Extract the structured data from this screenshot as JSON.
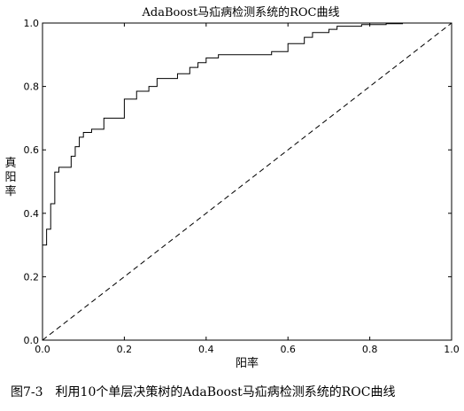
{
  "chart_data": {
    "type": "line",
    "title": "AdaBoost马疝病检测系统的ROC曲线",
    "xlabel": "阳率",
    "ylabel": "真阳率",
    "xlim": [
      0.0,
      1.0
    ],
    "ylim": [
      0.0,
      1.0
    ],
    "x_ticks": [
      "0.0",
      "0.2",
      "0.4",
      "0.6",
      "0.8",
      "1.0"
    ],
    "y_ticks": [
      "0.0",
      "0.2",
      "0.4",
      "0.6",
      "0.8",
      "1.0"
    ],
    "grid": false,
    "series": [
      {
        "style": "solid",
        "x": [
          0.0,
          0.0,
          0.01,
          0.01,
          0.02,
          0.02,
          0.03,
          0.03,
          0.04,
          0.04,
          0.07,
          0.07,
          0.08,
          0.08,
          0.09,
          0.09,
          0.1,
          0.1,
          0.12,
          0.12,
          0.15,
          0.15,
          0.2,
          0.2,
          0.23,
          0.23,
          0.26,
          0.26,
          0.28,
          0.28,
          0.33,
          0.33,
          0.36,
          0.36,
          0.38,
          0.38,
          0.4,
          0.4,
          0.43,
          0.43,
          0.56,
          0.56,
          0.6,
          0.6,
          0.64,
          0.64,
          0.66,
          0.66,
          0.7,
          0.7,
          0.72,
          0.72,
          0.78,
          0.78,
          0.84,
          0.84,
          0.88,
          0.88,
          1.0
        ],
        "y": [
          0.0,
          0.3,
          0.3,
          0.35,
          0.35,
          0.43,
          0.43,
          0.53,
          0.53,
          0.545,
          0.545,
          0.58,
          0.58,
          0.61,
          0.61,
          0.64,
          0.64,
          0.655,
          0.655,
          0.665,
          0.665,
          0.7,
          0.7,
          0.76,
          0.76,
          0.785,
          0.785,
          0.8,
          0.8,
          0.825,
          0.825,
          0.84,
          0.84,
          0.86,
          0.86,
          0.875,
          0.875,
          0.89,
          0.89,
          0.9,
          0.9,
          0.91,
          0.91,
          0.935,
          0.935,
          0.955,
          0.955,
          0.97,
          0.97,
          0.98,
          0.98,
          0.99,
          0.99,
          0.995,
          0.995,
          0.998,
          0.998,
          1.0,
          1.0
        ]
      },
      {
        "style": "dashed",
        "x": [
          0.0,
          1.0
        ],
        "y": [
          0.0,
          1.0
        ]
      }
    ]
  },
  "caption": "图7-3　利用10个单层决策树的AdaBoost马疝病检测系统的ROC曲线"
}
